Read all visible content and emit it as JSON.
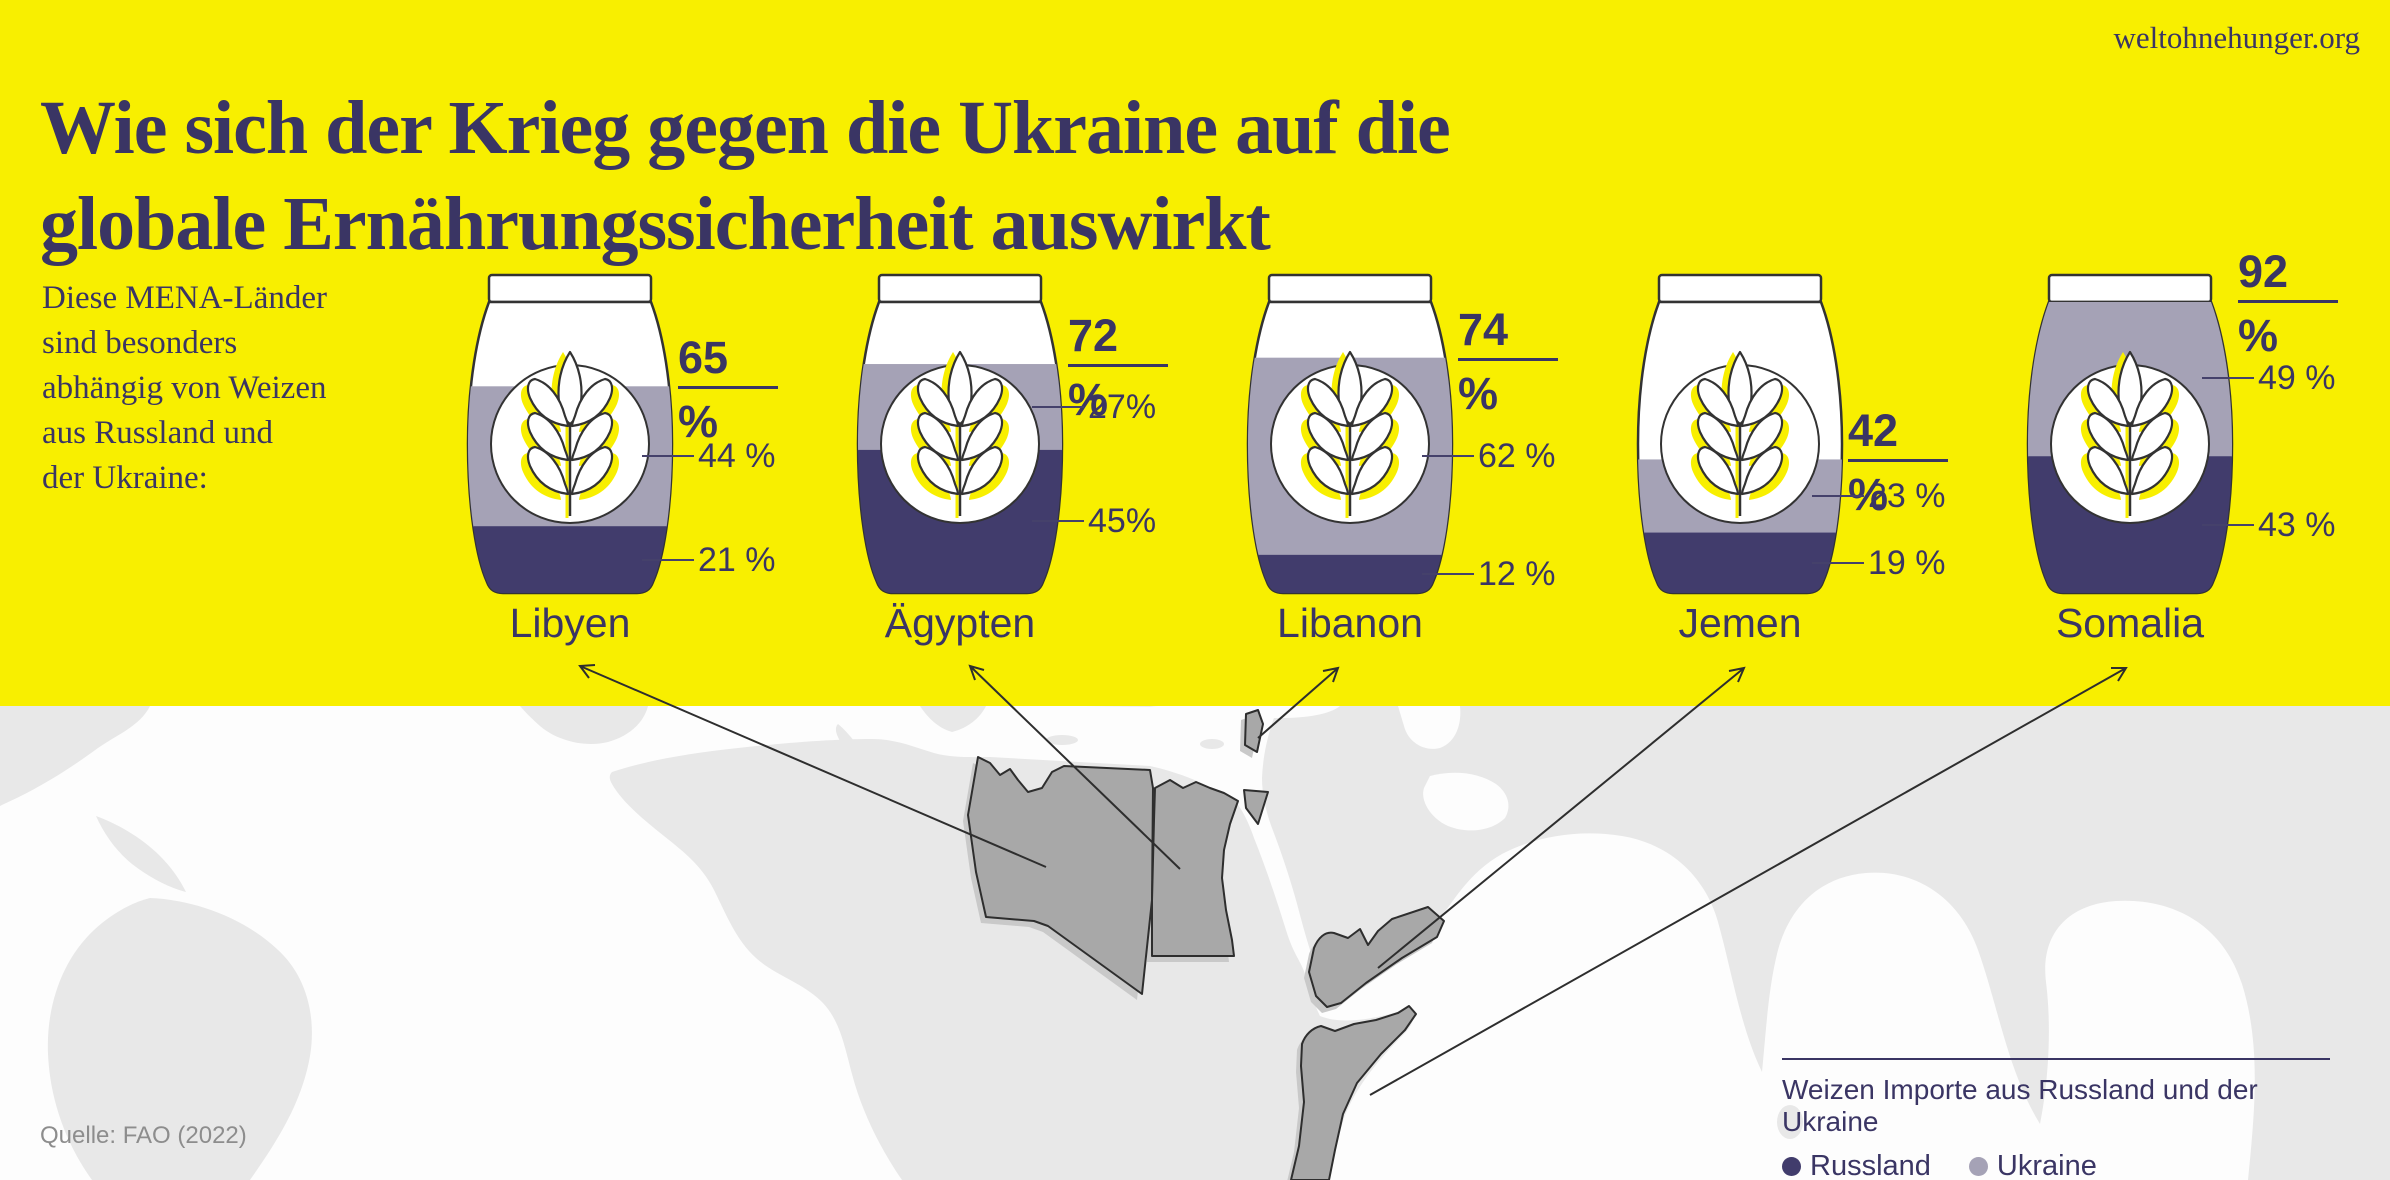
{
  "site": "weltohnehunger.org",
  "header": {
    "title": "Wie sich der Krieg gegen die Ukraine auf die\nglobale Ernährungssicherheit auswirkt"
  },
  "intro": {
    "text": "Diese MENA-Länder\nsind besonders\nabhängig von Weizen\naus Russland und\nder Ukraine:"
  },
  "chart_data": {
    "type": "bar",
    "stacked": true,
    "unit": "%",
    "title": "Wie sich der Krieg gegen die Ukraine auf die globale Ernährungssicherheit auswirkt",
    "subtitle": "Diese MENA-Länder sind besonders abhängig von Weizen aus Russland und der Ukraine",
    "categories": [
      "Libyen",
      "Ägypten",
      "Libanon",
      "Jemen",
      "Somalia"
    ],
    "series": [
      {
        "name": "Russland",
        "color": "#413c6c",
        "values": [
          21,
          45,
          12,
          19,
          43
        ],
        "labels": [
          "21 %",
          "45%",
          "12 %",
          "19 %",
          "43 %"
        ]
      },
      {
        "name": "Ukraine",
        "color": "#a5a2b6",
        "values": [
          44,
          27,
          62,
          23,
          49
        ],
        "labels": [
          "44 %",
          "27%",
          "62 %",
          "23 %",
          "49 %"
        ]
      }
    ],
    "totals": {
      "values": [
        65,
        72,
        74,
        42,
        92
      ],
      "labels": [
        "65 %",
        "72 %",
        "74 %",
        "42 %",
        "92 %"
      ]
    },
    "ylim": [
      0,
      100
    ],
    "legend_position": "bottom-right"
  },
  "legend": {
    "title": "Weizen Importe aus Russland und der Ukraine",
    "items": [
      {
        "label": "Russland",
        "color": "#413c6c"
      },
      {
        "label": "Ukraine",
        "color": "#a5a2b6"
      }
    ]
  },
  "map": {
    "highlighted_countries": [
      "Libyen",
      "Ägypten",
      "Libanon",
      "Jemen",
      "Somalia"
    ]
  },
  "source": {
    "text": "Quelle: FAO (2022)"
  },
  "colors": {
    "background_yellow": "#f8ef00",
    "text_navy": "#3a3564",
    "russia": "#413c6c",
    "ukraine": "#a5a2b6",
    "map_land": "#e8e8e8",
    "map_ocean": "#fdfdfd",
    "map_highlight": "#a8a8a8",
    "wheat_yellow": "#f8ef00"
  }
}
